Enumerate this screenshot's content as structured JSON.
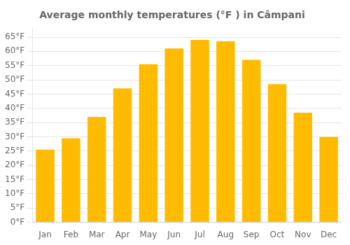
{
  "chart_data": {
    "type": "bar",
    "title": "Average monthly temperatures (°F ) in Câmpani",
    "categories": [
      "Jan",
      "Feb",
      "Mar",
      "Apr",
      "May",
      "Jun",
      "Jul",
      "Aug",
      "Sep",
      "Oct",
      "Nov",
      "Dec"
    ],
    "values": [
      25.5,
      29.5,
      37.0,
      47.0,
      55.5,
      61.0,
      64.0,
      63.5,
      57.0,
      48.5,
      38.5,
      30.0
    ],
    "color": "#FFBB00",
    "ylim": [
      0,
      68
    ],
    "yticks": [
      {
        "value": 0,
        "label": "0°F"
      },
      {
        "value": 5,
        "label": "5°F"
      },
      {
        "value": 10,
        "label": "10°F"
      },
      {
        "value": 15,
        "label": "15°F"
      },
      {
        "value": 20,
        "label": "20°F"
      },
      {
        "value": 25,
        "label": "25°F"
      },
      {
        "value": 30,
        "label": "30°F"
      },
      {
        "value": 35,
        "label": "35°F"
      },
      {
        "value": 40,
        "label": "40°F"
      },
      {
        "value": 45,
        "label": "45°F"
      },
      {
        "value": 50,
        "label": "50°F"
      },
      {
        "value": 55,
        "label": "55°F"
      },
      {
        "value": 60,
        "label": "60°F"
      },
      {
        "value": 65,
        "label": "65°F"
      }
    ],
    "grid": true
  }
}
